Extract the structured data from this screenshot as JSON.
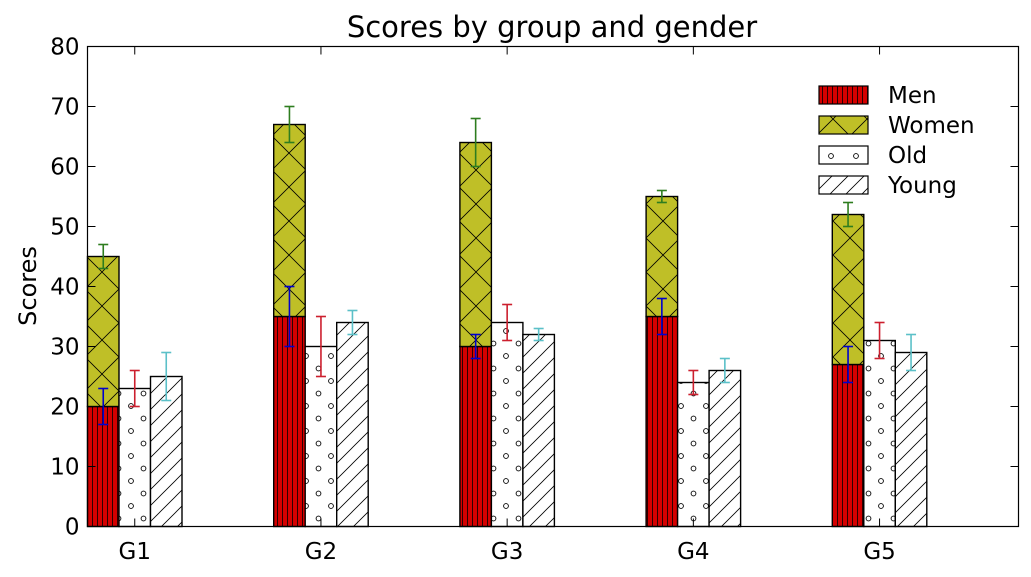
{
  "chart_data": {
    "type": "bar",
    "title": "Scores by group and gender",
    "xlabel": "",
    "ylabel": "Scores",
    "categories": [
      "G1",
      "G2",
      "G3",
      "G4",
      "G5"
    ],
    "ylim": [
      0,
      80
    ],
    "yticks": [
      0,
      10,
      20,
      30,
      40,
      50,
      60,
      70,
      80
    ],
    "grid": false,
    "legend_position": "top-right",
    "series": [
      {
        "name": "Men",
        "values": [
          20,
          35,
          30,
          35,
          27
        ],
        "errors": [
          3,
          5,
          2,
          3,
          3
        ],
        "stack": "mw",
        "color": "#d40000",
        "hatch": "vertical",
        "error_color": "#0000cc"
      },
      {
        "name": "Women",
        "values": [
          25,
          32,
          34,
          20,
          25
        ],
        "errors": [
          2,
          3,
          4,
          1,
          2
        ],
        "stack": "mw",
        "color": "#bfbf27",
        "hatch": "cross",
        "error_color": "#2e7d1f"
      },
      {
        "name": "Old",
        "values": [
          23,
          30,
          34,
          24,
          31
        ],
        "errors": [
          3,
          5,
          3,
          2,
          3
        ],
        "stack": "old",
        "color": "#ffffff",
        "hatch": "dots",
        "error_color": "#cc1f2e"
      },
      {
        "name": "Young",
        "values": [
          25,
          34,
          32,
          26,
          29
        ],
        "errors": [
          4,
          2,
          1,
          2,
          3
        ],
        "stack": "young",
        "color": "#ffffff",
        "hatch": "diagonal",
        "error_color": "#5bc0c8"
      }
    ]
  }
}
